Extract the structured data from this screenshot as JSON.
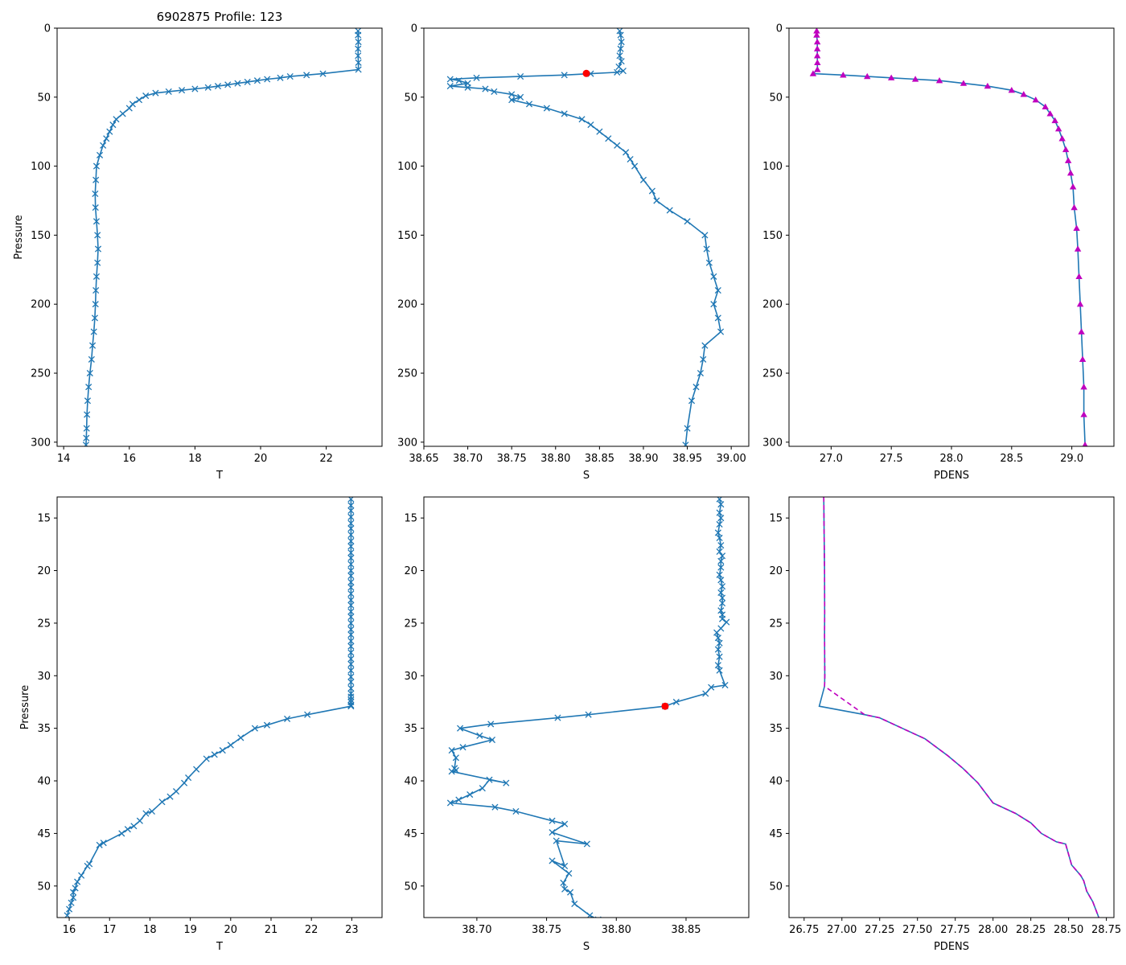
{
  "chart_data": [
    {
      "id": "top-T",
      "type": "line",
      "title": "6902875 Profile: 123",
      "xlabel": "T",
      "ylabel": "Pressure",
      "xlim": [
        13.8,
        23.7
      ],
      "ylim": [
        0,
        303
      ],
      "xticks": [
        14,
        16,
        18,
        20,
        22
      ],
      "yticks": [
        0,
        50,
        100,
        150,
        200,
        250,
        300
      ],
      "series": [
        {
          "name": "T",
          "color": "#1f77b4",
          "marker": "x",
          "x": [
            22.97,
            22.97,
            22.98,
            22.97,
            22.97,
            22.98,
            22.98,
            21.9,
            21.4,
            20.9,
            20.6,
            20.2,
            19.9,
            19.6,
            19.3,
            19.0,
            18.7,
            18.4,
            18.0,
            17.6,
            17.2,
            16.8,
            16.5,
            16.3,
            16.1,
            16.0,
            15.8,
            15.6,
            15.5,
            15.4,
            15.3,
            15.2,
            15.1,
            15.0,
            14.98,
            14.96,
            14.97,
            15.0,
            15.03,
            15.05,
            15.03,
            15.0,
            14.98,
            14.97,
            14.95,
            14.92,
            14.88,
            14.85,
            14.8,
            14.76,
            14.73,
            14.71,
            14.7,
            14.69,
            14.68
          ],
          "y": [
            2,
            5,
            10,
            15,
            20,
            25,
            30,
            33,
            34,
            35,
            36,
            37,
            38,
            39,
            40,
            41,
            42,
            43,
            44,
            45,
            46,
            47,
            49,
            52,
            55,
            58,
            62,
            66,
            70,
            75,
            80,
            85,
            92,
            100,
            110,
            120,
            130,
            140,
            150,
            160,
            170,
            180,
            190,
            200,
            210,
            220,
            230,
            240,
            250,
            260,
            270,
            280,
            290,
            297,
            302
          ]
        }
      ]
    },
    {
      "id": "top-S",
      "type": "line",
      "title": "",
      "xlabel": "S",
      "ylabel": "",
      "xlim": [
        38.65,
        39.02
      ],
      "ylim": [
        0,
        303
      ],
      "xticks": [
        38.65,
        38.7,
        38.75,
        38.8,
        38.85,
        38.9,
        38.95,
        39.0
      ],
      "yticks": [
        0,
        50,
        100,
        150,
        200,
        250,
        300
      ],
      "series": [
        {
          "name": "S",
          "color": "#1f77b4",
          "marker": "x",
          "x": [
            38.873,
            38.874,
            38.875,
            38.874,
            38.873,
            38.875,
            38.872,
            38.877,
            38.87,
            38.84,
            38.81,
            38.76,
            38.71,
            38.68,
            38.69,
            38.7,
            38.68,
            38.7,
            38.72,
            38.73,
            38.75,
            38.76,
            38.75,
            38.77,
            38.79,
            38.81,
            38.83,
            38.84,
            38.85,
            38.86,
            38.87,
            38.88,
            38.885,
            38.89,
            38.9,
            38.91,
            38.915,
            38.93,
            38.95,
            38.97,
            38.972,
            38.975,
            38.98,
            38.985,
            38.98,
            38.985,
            38.988,
            38.97,
            38.968,
            38.965,
            38.96,
            38.955,
            38.95,
            38.948
          ],
          "y": [
            2,
            5,
            10,
            15,
            20,
            24,
            28,
            31,
            32,
            33,
            34,
            35,
            36,
            37,
            38,
            40,
            42,
            43,
            44,
            46,
            48,
            50,
            52,
            55,
            58,
            62,
            66,
            70,
            75,
            80,
            85,
            90,
            95,
            100,
            110,
            118,
            125,
            132,
            140,
            150,
            160,
            170,
            180,
            190,
            200,
            210,
            220,
            230,
            240,
            250,
            260,
            270,
            290,
            302
          ]
        }
      ],
      "highlight": {
        "x": 38.835,
        "y": 32.8,
        "color": "#ff0000"
      }
    },
    {
      "id": "top-PDENS",
      "type": "line",
      "title": "",
      "xlabel": "PDENS",
      "ylabel": "",
      "xlim": [
        26.65,
        29.35
      ],
      "ylim": [
        0,
        303
      ],
      "xticks": [
        27.0,
        27.5,
        28.0,
        28.5,
        29.0
      ],
      "yticks": [
        0,
        50,
        100,
        150,
        200,
        250,
        300
      ],
      "series": [
        {
          "name": "PDENS",
          "color": "#1f77b4",
          "marker": "^",
          "markerColor": "#bf00bf",
          "x": [
            26.88,
            26.88,
            26.885,
            26.885,
            26.885,
            26.886,
            26.886,
            26.85,
            27.1,
            27.3,
            27.5,
            27.7,
            27.9,
            28.1,
            28.3,
            28.5,
            28.6,
            28.7,
            28.78,
            28.82,
            28.86,
            28.89,
            28.92,
            28.95,
            28.97,
            28.99,
            29.01,
            29.02,
            29.04,
            29.05,
            29.06,
            29.07,
            29.08,
            29.09,
            29.1,
            29.1,
            29.11
          ],
          "y": [
            2,
            5,
            10,
            15,
            20,
            25,
            30,
            33,
            34,
            35,
            36,
            37,
            38,
            40,
            42,
            45,
            48,
            52,
            57,
            62,
            67,
            73,
            80,
            88,
            96,
            105,
            115,
            130,
            145,
            160,
            180,
            200,
            220,
            240,
            260,
            280,
            302
          ]
        }
      ]
    },
    {
      "id": "bottom-T",
      "type": "line",
      "title": "",
      "xlabel": "T",
      "ylabel": "Pressure",
      "xlim": [
        15.7,
        23.75
      ],
      "ylim": [
        13,
        53
      ],
      "xticks": [
        16,
        17,
        18,
        19,
        20,
        21,
        22,
        23
      ],
      "yticks": [
        15,
        20,
        25,
        30,
        35,
        40,
        45,
        50
      ],
      "series": [
        {
          "name": "T",
          "color": "#1f77b4",
          "marker": "x",
          "x": [
            22.98,
            22.98,
            22.98,
            22.98,
            22.98,
            22.98,
            22.98,
            22.98,
            22.98,
            22.98,
            22.98,
            22.98,
            22.98,
            22.98,
            22.98,
            22.98,
            22.98,
            22.98,
            22.98,
            22.98,
            22.98,
            22.98,
            22.98,
            22.98,
            22.98,
            22.98,
            22.98,
            22.98,
            22.98,
            22.98,
            22.98,
            22.98,
            22.98,
            22.98,
            22.98,
            22.98,
            22.98,
            22.98,
            22.98,
            21.9,
            21.4,
            20.9,
            20.6,
            20.25,
            20.0,
            19.8,
            19.6,
            19.4,
            19.15,
            18.95,
            18.85,
            18.65,
            18.5,
            18.3,
            18.05,
            17.9,
            17.75,
            17.6,
            17.45,
            17.3,
            16.85,
            16.75,
            16.5,
            16.45,
            16.3,
            16.2,
            16.15,
            16.1,
            16.1,
            16.05,
            16.0,
            15.95
          ],
          "y": [
            13.2,
            13.8,
            14.3,
            14.9,
            15.5,
            16.0,
            16.6,
            17.2,
            17.7,
            18.3,
            18.8,
            19.4,
            20.0,
            20.5,
            21.1,
            21.6,
            22.2,
            22.8,
            23.3,
            23.9,
            24.4,
            25.0,
            25.6,
            26.1,
            26.7,
            27.2,
            27.8,
            28.4,
            28.9,
            29.5,
            30.1,
            30.6,
            31.2,
            31.7,
            32.3,
            32.8,
            32.0,
            32.5,
            32.9,
            33.7,
            34.1,
            34.7,
            35.0,
            35.9,
            36.6,
            37.1,
            37.5,
            37.9,
            38.9,
            39.7,
            40.2,
            41.0,
            41.5,
            42.0,
            42.9,
            43.1,
            43.8,
            44.3,
            44.6,
            45.0,
            45.9,
            46.1,
            47.9,
            48.1,
            49.0,
            49.6,
            50.2,
            50.6,
            51.1,
            51.6,
            52.2,
            52.8
          ]
        }
      ]
    },
    {
      "id": "bottom-S",
      "type": "line",
      "title": "",
      "xlabel": "S",
      "ylabel": "",
      "xlim": [
        38.662,
        38.895
      ],
      "ylim": [
        13,
        53
      ],
      "xticks": [
        38.7,
        38.75,
        38.8,
        38.85
      ],
      "yticks": [
        15,
        20,
        25,
        30,
        35,
        40,
        45,
        50
      ],
      "series": [
        {
          "name": "S",
          "color": "#1f77b4",
          "marker": "x",
          "x": [
            38.874,
            38.875,
            38.874,
            38.875,
            38.874,
            38.873,
            38.874,
            38.875,
            38.874,
            38.876,
            38.875,
            38.875,
            38.874,
            38.875,
            38.876,
            38.875,
            38.876,
            38.876,
            38.875,
            38.876,
            38.876,
            38.879,
            38.875,
            38.872,
            38.873,
            38.874,
            38.873,
            38.874,
            38.873,
            38.874,
            38.878,
            38.868,
            38.864,
            38.843,
            38.835,
            38.78,
            38.758,
            38.71,
            38.688,
            38.702,
            38.711,
            38.69,
            38.682,
            38.685,
            38.684,
            38.685,
            38.682,
            38.721,
            38.709,
            38.704,
            38.695,
            38.687,
            38.681,
            38.713,
            38.728,
            38.754,
            38.763,
            38.754,
            38.779,
            38.757,
            38.763,
            38.754,
            38.766,
            38.762,
            38.763,
            38.767,
            38.77,
            38.781,
            38.787
          ],
          "y": [
            13.2,
            13.7,
            14.5,
            15.0,
            15.6,
            16.4,
            16.9,
            17.6,
            18.2,
            18.6,
            19.1,
            19.7,
            20.4,
            20.9,
            21.5,
            22.1,
            22.6,
            23.1,
            23.8,
            24.2,
            24.6,
            24.9,
            25.5,
            25.9,
            26.4,
            26.9,
            27.5,
            28.2,
            29.0,
            29.5,
            30.9,
            31.1,
            31.7,
            32.5,
            32.9,
            33.7,
            34.0,
            34.6,
            35.0,
            35.7,
            36.1,
            36.8,
            37.1,
            37.8,
            38.8,
            39.0,
            39.1,
            40.2,
            39.9,
            40.7,
            41.3,
            41.8,
            42.1,
            42.5,
            42.9,
            43.8,
            44.1,
            44.9,
            46.0,
            45.7,
            48.1,
            47.6,
            48.8,
            49.7,
            50.3,
            50.6,
            51.7,
            52.8,
            53.2
          ]
        }
      ],
      "highlight": {
        "x": 38.835,
        "y": 32.9,
        "color": "#ff0000"
      }
    },
    {
      "id": "bottom-PDENS",
      "type": "line",
      "title": "",
      "xlabel": "PDENS",
      "ylabel": "",
      "xlim": [
        26.65,
        28.8
      ],
      "ylim": [
        13,
        53
      ],
      "xticks": [
        26.75,
        27.0,
        27.25,
        27.5,
        27.75,
        28.0,
        28.25,
        28.5,
        28.75
      ],
      "yticks": [
        15,
        20,
        25,
        30,
        35,
        40,
        45,
        50
      ],
      "series": [
        {
          "name": "PDENS",
          "color": "#1f77b4",
          "marker": "",
          "x": [
            26.88,
            26.882,
            26.885,
            26.886,
            26.885,
            26.886,
            26.887,
            26.885,
            26.85,
            27.15,
            27.25,
            27.4,
            27.55,
            27.7,
            27.8,
            27.9,
            28.0,
            28.15,
            28.25,
            28.32,
            28.42,
            28.48,
            28.52,
            28.58,
            28.6,
            28.62,
            28.66,
            28.7
          ],
          "y": [
            13,
            16,
            20,
            24,
            26,
            28,
            30,
            31,
            32.9,
            33.7,
            34,
            35,
            36,
            37.6,
            38.8,
            40.2,
            42.1,
            43.1,
            44,
            45,
            45.8,
            46,
            48,
            49,
            49.5,
            50.5,
            51.5,
            53
          ]
        },
        {
          "name": "PDENS-dashed",
          "color": "#bf00bf",
          "marker": "",
          "dash": "6,4",
          "x": [
            26.88,
            26.882,
            26.885,
            26.886,
            26.885,
            26.886,
            26.887,
            26.885,
            27.15,
            27.25,
            27.4,
            27.55,
            27.7,
            27.8,
            27.9,
            28.0,
            28.15,
            28.25,
            28.32,
            28.42,
            28.48,
            28.52,
            28.58,
            28.6,
            28.62,
            28.66,
            28.7
          ],
          "y": [
            13,
            16,
            20,
            24,
            26,
            28,
            30,
            31,
            33.7,
            34,
            35,
            36,
            37.6,
            38.8,
            40.2,
            42.1,
            43.1,
            44,
            45,
            45.8,
            46,
            48,
            49,
            49.5,
            50.5,
            51.5,
            53
          ]
        }
      ]
    }
  ]
}
